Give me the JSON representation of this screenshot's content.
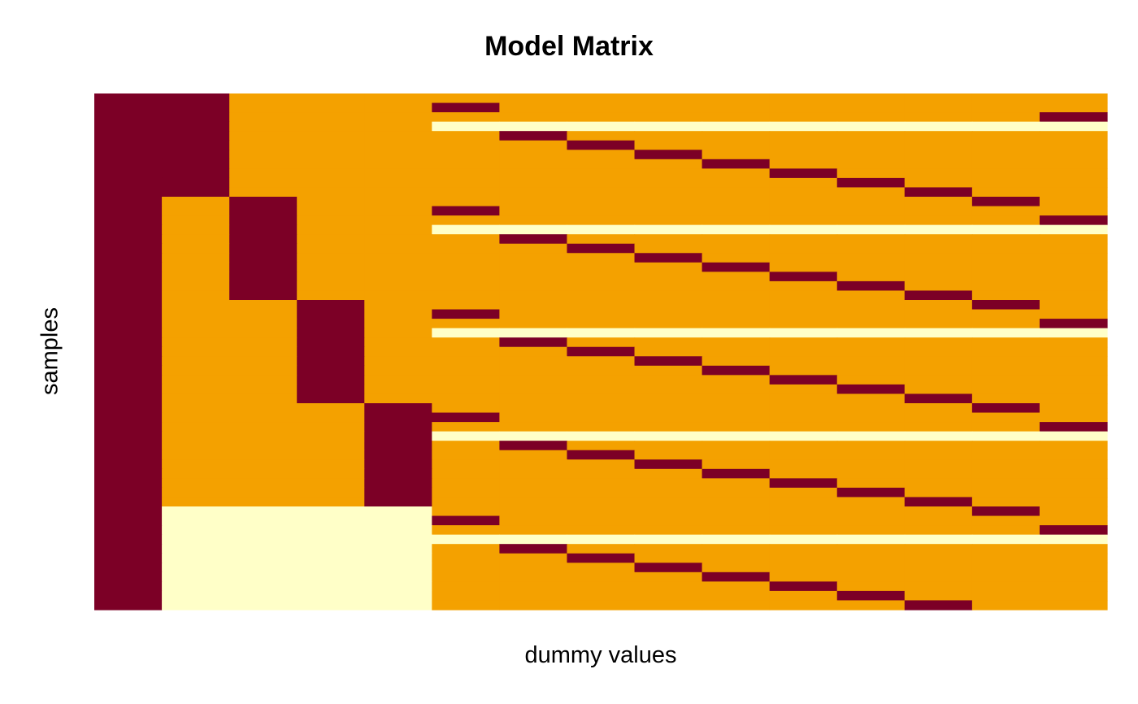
{
  "chart_data": {
    "type": "heatmap",
    "title": "Model Matrix",
    "xlabel": "dummy values",
    "ylabel": "samples",
    "axes_ticks": "none",
    "legend": "none",
    "grid": false,
    "colors": {
      "0": "#F4A100",
      "1": "#7C0026",
      "NA": "#FFFFC8"
    },
    "n_rows": 55,
    "n_cols": 15,
    "matrix": [
      [
        1,
        1,
        0,
        0,
        0,
        0,
        0,
        0,
        0,
        0,
        0,
        0,
        0,
        0,
        0
      ],
      [
        1,
        1,
        0,
        0,
        0,
        1,
        0,
        0,
        0,
        0,
        0,
        0,
        0,
        0,
        0
      ],
      [
        1,
        1,
        0,
        0,
        0,
        0,
        0,
        0,
        0,
        0,
        0,
        0,
        0,
        0,
        1
      ],
      [
        1,
        1,
        0,
        0,
        0,
        null,
        null,
        null,
        null,
        null,
        null,
        null,
        null,
        null,
        null
      ],
      [
        1,
        1,
        0,
        0,
        0,
        0,
        1,
        0,
        0,
        0,
        0,
        0,
        0,
        0,
        0
      ],
      [
        1,
        1,
        0,
        0,
        0,
        0,
        0,
        1,
        0,
        0,
        0,
        0,
        0,
        0,
        0
      ],
      [
        1,
        1,
        0,
        0,
        0,
        0,
        0,
        0,
        1,
        0,
        0,
        0,
        0,
        0,
        0
      ],
      [
        1,
        1,
        0,
        0,
        0,
        0,
        0,
        0,
        0,
        1,
        0,
        0,
        0,
        0,
        0
      ],
      [
        1,
        1,
        0,
        0,
        0,
        0,
        0,
        0,
        0,
        0,
        1,
        0,
        0,
        0,
        0
      ],
      [
        1,
        1,
        0,
        0,
        0,
        0,
        0,
        0,
        0,
        0,
        0,
        1,
        0,
        0,
        0
      ],
      [
        1,
        1,
        0,
        0,
        0,
        0,
        0,
        0,
        0,
        0,
        0,
        0,
        1,
        0,
        0
      ],
      [
        1,
        0,
        1,
        0,
        0,
        0,
        0,
        0,
        0,
        0,
        0,
        0,
        0,
        1,
        0
      ],
      [
        1,
        0,
        1,
        0,
        0,
        1,
        0,
        0,
        0,
        0,
        0,
        0,
        0,
        0,
        0
      ],
      [
        1,
        0,
        1,
        0,
        0,
        0,
        0,
        0,
        0,
        0,
        0,
        0,
        0,
        0,
        1
      ],
      [
        1,
        0,
        1,
        0,
        0,
        null,
        null,
        null,
        null,
        null,
        null,
        null,
        null,
        null,
        null
      ],
      [
        1,
        0,
        1,
        0,
        0,
        0,
        1,
        0,
        0,
        0,
        0,
        0,
        0,
        0,
        0
      ],
      [
        1,
        0,
        1,
        0,
        0,
        0,
        0,
        1,
        0,
        0,
        0,
        0,
        0,
        0,
        0
      ],
      [
        1,
        0,
        1,
        0,
        0,
        0,
        0,
        0,
        1,
        0,
        0,
        0,
        0,
        0,
        0
      ],
      [
        1,
        0,
        1,
        0,
        0,
        0,
        0,
        0,
        0,
        1,
        0,
        0,
        0,
        0,
        0
      ],
      [
        1,
        0,
        1,
        0,
        0,
        0,
        0,
        0,
        0,
        0,
        1,
        0,
        0,
        0,
        0
      ],
      [
        1,
        0,
        1,
        0,
        0,
        0,
        0,
        0,
        0,
        0,
        0,
        1,
        0,
        0,
        0
      ],
      [
        1,
        0,
        1,
        0,
        0,
        0,
        0,
        0,
        0,
        0,
        0,
        0,
        1,
        0,
        0
      ],
      [
        1,
        0,
        0,
        1,
        0,
        0,
        0,
        0,
        0,
        0,
        0,
        0,
        0,
        1,
        0
      ],
      [
        1,
        0,
        0,
        1,
        0,
        1,
        0,
        0,
        0,
        0,
        0,
        0,
        0,
        0,
        0
      ],
      [
        1,
        0,
        0,
        1,
        0,
        0,
        0,
        0,
        0,
        0,
        0,
        0,
        0,
        0,
        1
      ],
      [
        1,
        0,
        0,
        1,
        0,
        null,
        null,
        null,
        null,
        null,
        null,
        null,
        null,
        null,
        null
      ],
      [
        1,
        0,
        0,
        1,
        0,
        0,
        1,
        0,
        0,
        0,
        0,
        0,
        0,
        0,
        0
      ],
      [
        1,
        0,
        0,
        1,
        0,
        0,
        0,
        1,
        0,
        0,
        0,
        0,
        0,
        0,
        0
      ],
      [
        1,
        0,
        0,
        1,
        0,
        0,
        0,
        0,
        1,
        0,
        0,
        0,
        0,
        0,
        0
      ],
      [
        1,
        0,
        0,
        1,
        0,
        0,
        0,
        0,
        0,
        1,
        0,
        0,
        0,
        0,
        0
      ],
      [
        1,
        0,
        0,
        1,
        0,
        0,
        0,
        0,
        0,
        0,
        1,
        0,
        0,
        0,
        0
      ],
      [
        1,
        0,
        0,
        1,
        0,
        0,
        0,
        0,
        0,
        0,
        0,
        1,
        0,
        0,
        0
      ],
      [
        1,
        0,
        0,
        1,
        0,
        0,
        0,
        0,
        0,
        0,
        0,
        0,
        1,
        0,
        0
      ],
      [
        1,
        0,
        0,
        0,
        1,
        0,
        0,
        0,
        0,
        0,
        0,
        0,
        0,
        1,
        0
      ],
      [
        1,
        0,
        0,
        0,
        1,
        1,
        0,
        0,
        0,
        0,
        0,
        0,
        0,
        0,
        0
      ],
      [
        1,
        0,
        0,
        0,
        1,
        0,
        0,
        0,
        0,
        0,
        0,
        0,
        0,
        0,
        1
      ],
      [
        1,
        0,
        0,
        0,
        1,
        null,
        null,
        null,
        null,
        null,
        null,
        null,
        null,
        null,
        null
      ],
      [
        1,
        0,
        0,
        0,
        1,
        0,
        1,
        0,
        0,
        0,
        0,
        0,
        0,
        0,
        0
      ],
      [
        1,
        0,
        0,
        0,
        1,
        0,
        0,
        1,
        0,
        0,
        0,
        0,
        0,
        0,
        0
      ],
      [
        1,
        0,
        0,
        0,
        1,
        0,
        0,
        0,
        1,
        0,
        0,
        0,
        0,
        0,
        0
      ],
      [
        1,
        0,
        0,
        0,
        1,
        0,
        0,
        0,
        0,
        1,
        0,
        0,
        0,
        0,
        0
      ],
      [
        1,
        0,
        0,
        0,
        1,
        0,
        0,
        0,
        0,
        0,
        1,
        0,
        0,
        0,
        0
      ],
      [
        1,
        0,
        0,
        0,
        1,
        0,
        0,
        0,
        0,
        0,
        0,
        1,
        0,
        0,
        0
      ],
      [
        1,
        0,
        0,
        0,
        1,
        0,
        0,
        0,
        0,
        0,
        0,
        0,
        1,
        0,
        0
      ],
      [
        1,
        null,
        null,
        null,
        null,
        0,
        0,
        0,
        0,
        0,
        0,
        0,
        0,
        1,
        0
      ],
      [
        1,
        null,
        null,
        null,
        null,
        1,
        0,
        0,
        0,
        0,
        0,
        0,
        0,
        0,
        0
      ],
      [
        1,
        null,
        null,
        null,
        null,
        0,
        0,
        0,
        0,
        0,
        0,
        0,
        0,
        0,
        1
      ],
      [
        1,
        null,
        null,
        null,
        null,
        null,
        null,
        null,
        null,
        null,
        null,
        null,
        null,
        null,
        null
      ],
      [
        1,
        null,
        null,
        null,
        null,
        0,
        1,
        0,
        0,
        0,
        0,
        0,
        0,
        0,
        0
      ],
      [
        1,
        null,
        null,
        null,
        null,
        0,
        0,
        1,
        0,
        0,
        0,
        0,
        0,
        0,
        0
      ],
      [
        1,
        null,
        null,
        null,
        null,
        0,
        0,
        0,
        1,
        0,
        0,
        0,
        0,
        0,
        0
      ],
      [
        1,
        null,
        null,
        null,
        null,
        0,
        0,
        0,
        0,
        1,
        0,
        0,
        0,
        0,
        0
      ],
      [
        1,
        null,
        null,
        null,
        null,
        0,
        0,
        0,
        0,
        0,
        1,
        0,
        0,
        0,
        0
      ],
      [
        1,
        null,
        null,
        null,
        null,
        0,
        0,
        0,
        0,
        0,
        0,
        1,
        0,
        0,
        0
      ],
      [
        1,
        null,
        null,
        null,
        null,
        0,
        0,
        0,
        0,
        0,
        0,
        0,
        1,
        0,
        0
      ]
    ]
  }
}
